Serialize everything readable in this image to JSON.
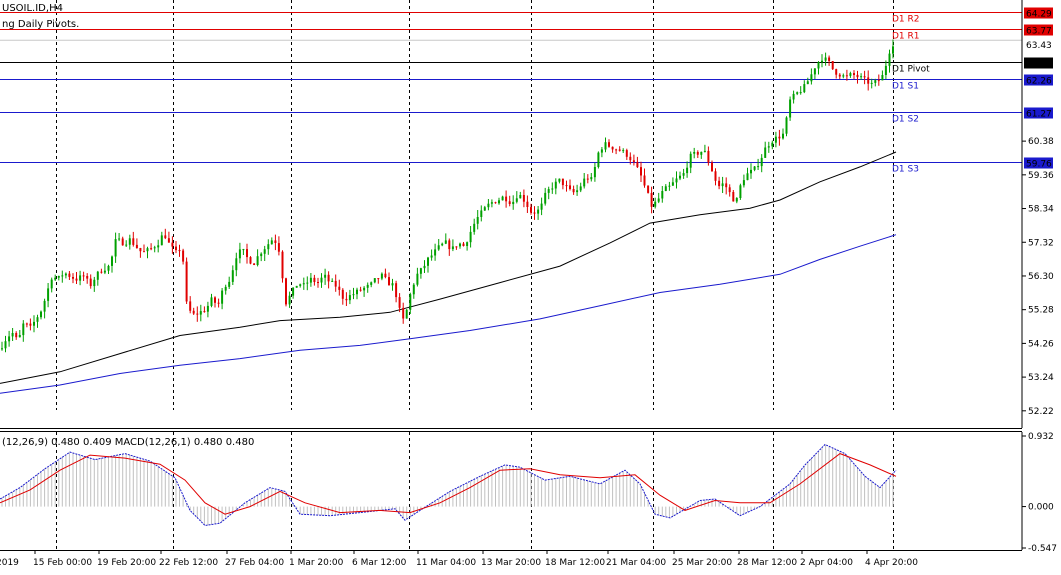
{
  "window": {
    "title": "USOIL.ID,H4",
    "indicator_name": "ng Daily Pivots."
  },
  "colors": {
    "up": "#00a000",
    "down": "#e00000",
    "ma_fast": "#000000",
    "ma_slow": "#1a1acd",
    "resistance": "#e00000",
    "support": "#1a1acd",
    "pivot": "#000000",
    "macd_hist": "#c0c0c0",
    "macd_main": "#1a1acd",
    "macd_signal": "#e00000",
    "grid": "#000000"
  },
  "chart_data": [
    {
      "type": "candlestick",
      "title": "USOIL.ID,H4",
      "ylim": [
        51.7,
        64.65
      ],
      "y_ticks": [
        "64.29",
        "63.77",
        "62.78",
        "62.26",
        "61.27",
        "60.38",
        "59.76",
        "59.36",
        "58.34",
        "57.32",
        "56.30",
        "55.28",
        "54.26",
        "53.24",
        "52.22"
      ],
      "x_ticks": [
        "2019",
        "15 Feb 00:00",
        "19 Feb 20:00",
        "22 Feb 12:00",
        "27 Feb 04:00",
        "1 Mar 20:00",
        "6 Mar 12:00",
        "11 Mar 04:00",
        "13 Mar 20:00",
        "18 Mar 12:00",
        "21 Mar 04:00",
        "25 Mar 20:00",
        "28 Mar 12:00",
        "2 Apr 04:00",
        "4 Apr 20:00"
      ],
      "levels": [
        {
          "name": "D1 R2",
          "value": 64.29,
          "label": "64.29",
          "kind": "resistance"
        },
        {
          "name": "D1 R1",
          "value": 63.77,
          "label": "63.77",
          "kind": "resistance"
        },
        {
          "name": "D1 Pivot",
          "value": 62.78,
          "label": "62.78",
          "kind": "pivot"
        },
        {
          "name": "D1 S1",
          "value": 62.26,
          "label": "62.26",
          "kind": "support"
        },
        {
          "name": "D1 S2",
          "value": 61.27,
          "label": "61.27",
          "kind": "support"
        },
        {
          "name": "D1 S3",
          "value": 59.76,
          "label": "59.76",
          "kind": "support"
        }
      ],
      "current_price": "63.43",
      "price_path": [
        [
          0,
          54.1
        ],
        [
          6,
          54.4
        ],
        [
          12,
          54.6
        ],
        [
          18,
          54.3
        ],
        [
          24,
          54.9
        ],
        [
          30,
          54.7
        ],
        [
          36,
          55.0
        ],
        [
          42,
          55.3
        ],
        [
          48,
          55.9
        ],
        [
          52,
          56.3
        ],
        [
          58,
          56.2
        ],
        [
          64,
          56.4
        ],
        [
          70,
          56.3
        ],
        [
          76,
          56.2
        ],
        [
          84,
          56.3
        ],
        [
          90,
          56.0
        ],
        [
          96,
          56.3
        ],
        [
          102,
          56.5
        ],
        [
          110,
          56.6
        ],
        [
          116,
          57.4
        ],
        [
          124,
          57.3
        ],
        [
          130,
          57.4
        ],
        [
          136,
          57.2
        ],
        [
          142,
          57.0
        ],
        [
          150,
          57.1
        ],
        [
          158,
          57.3
        ],
        [
          164,
          57.6
        ],
        [
          170,
          57.2
        ],
        [
          176,
          57.0
        ],
        [
          182,
          57.2
        ],
        [
          186,
          55.5
        ],
        [
          192,
          55.1
        ],
        [
          200,
          55.2
        ],
        [
          206,
          55.3
        ],
        [
          212,
          55.6
        ],
        [
          218,
          55.4
        ],
        [
          224,
          56.0
        ],
        [
          230,
          56.2
        ],
        [
          236,
          56.9
        ],
        [
          242,
          57.1
        ],
        [
          248,
          56.8
        ],
        [
          254,
          56.7
        ],
        [
          260,
          57.0
        ],
        [
          266,
          57.2
        ],
        [
          272,
          57.4
        ],
        [
          278,
          57.3
        ],
        [
          286,
          55.5
        ],
        [
          292,
          55.8
        ],
        [
          298,
          56.1
        ],
        [
          304,
          56.0
        ],
        [
          310,
          56.2
        ],
        [
          318,
          56.1
        ],
        [
          324,
          56.3
        ],
        [
          330,
          56.1
        ],
        [
          336,
          56.0
        ],
        [
          344,
          55.6
        ],
        [
          350,
          55.7
        ],
        [
          356,
          55.8
        ],
        [
          362,
          55.9
        ],
        [
          370,
          56.0
        ],
        [
          376,
          56.2
        ],
        [
          382,
          56.3
        ],
        [
          388,
          56.1
        ],
        [
          394,
          56.0
        ],
        [
          400,
          55.2
        ],
        [
          404,
          54.9
        ],
        [
          410,
          55.7
        ],
        [
          416,
          56.3
        ],
        [
          422,
          56.5
        ],
        [
          428,
          56.8
        ],
        [
          434,
          57.0
        ],
        [
          440,
          57.2
        ],
        [
          446,
          57.3
        ],
        [
          452,
          57.1
        ],
        [
          458,
          57.3
        ],
        [
          464,
          57.2
        ],
        [
          470,
          57.6
        ],
        [
          476,
          58.0
        ],
        [
          484,
          58.3
        ],
        [
          490,
          58.5
        ],
        [
          498,
          58.6
        ],
        [
          504,
          58.7
        ],
        [
          512,
          58.5
        ],
        [
          518,
          58.8
        ],
        [
          524,
          58.6
        ],
        [
          532,
          58.2
        ],
        [
          540,
          58.3
        ],
        [
          546,
          58.8
        ],
        [
          552,
          59.0
        ],
        [
          560,
          59.2
        ],
        [
          566,
          59.0
        ],
        [
          572,
          58.8
        ],
        [
          578,
          58.9
        ],
        [
          586,
          59.3
        ],
        [
          592,
          59.2
        ],
        [
          598,
          60.0
        ],
        [
          604,
          60.3
        ],
        [
          612,
          60.2
        ],
        [
          620,
          60.1
        ],
        [
          626,
          60.0
        ],
        [
          632,
          59.8
        ],
        [
          640,
          59.4
        ],
        [
          646,
          58.9
        ],
        [
          652,
          58.4
        ],
        [
          658,
          58.6
        ],
        [
          664,
          58.9
        ],
        [
          670,
          59.0
        ],
        [
          676,
          59.2
        ],
        [
          684,
          59.4
        ],
        [
          690,
          59.9
        ],
        [
          696,
          60.0
        ],
        [
          704,
          60.1
        ],
        [
          712,
          59.5
        ],
        [
          718,
          59.0
        ],
        [
          724,
          59.1
        ],
        [
          730,
          58.8
        ],
        [
          736,
          58.5
        ],
        [
          742,
          59.2
        ],
        [
          748,
          59.4
        ],
        [
          754,
          59.5
        ],
        [
          760,
          59.8
        ],
        [
          766,
          60.2
        ],
        [
          772,
          60.4
        ],
        [
          778,
          60.5
        ],
        [
          784,
          60.6
        ],
        [
          790,
          61.6
        ],
        [
          796,
          61.8
        ],
        [
          804,
          62.0
        ],
        [
          810,
          62.3
        ],
        [
          816,
          62.7
        ],
        [
          822,
          62.9
        ],
        [
          828,
          62.8
        ],
        [
          834,
          62.5
        ],
        [
          840,
          62.4
        ],
        [
          846,
          62.3
        ],
        [
          852,
          62.4
        ],
        [
          860,
          62.3
        ],
        [
          866,
          62.2
        ],
        [
          872,
          62.1
        ],
        [
          878,
          62.2
        ],
        [
          884,
          62.4
        ],
        [
          888,
          63.0
        ],
        [
          892,
          63.3
        ],
        [
          896,
          63.43
        ]
      ],
      "ma_fast_path": [
        [
          0,
          53.05
        ],
        [
          60,
          53.4
        ],
        [
          120,
          53.95
        ],
        [
          180,
          54.5
        ],
        [
          240,
          54.75
        ],
        [
          280,
          54.95
        ],
        [
          340,
          55.05
        ],
        [
          390,
          55.2
        ],
        [
          440,
          55.6
        ],
        [
          500,
          56.1
        ],
        [
          560,
          56.6
        ],
        [
          610,
          57.3
        ],
        [
          650,
          57.9
        ],
        [
          700,
          58.15
        ],
        [
          750,
          58.35
        ],
        [
          780,
          58.6
        ],
        [
          820,
          59.15
        ],
        [
          860,
          59.6
        ],
        [
          896,
          60.05
        ]
      ],
      "ma_slow_path": [
        [
          0,
          52.75
        ],
        [
          60,
          53.0
        ],
        [
          120,
          53.35
        ],
        [
          180,
          53.6
        ],
        [
          240,
          53.8
        ],
        [
          300,
          54.05
        ],
        [
          360,
          54.2
        ],
        [
          410,
          54.4
        ],
        [
          470,
          54.65
        ],
        [
          540,
          55.0
        ],
        [
          600,
          55.4
        ],
        [
          660,
          55.8
        ],
        [
          720,
          56.05
        ],
        [
          780,
          56.35
        ],
        [
          820,
          56.8
        ],
        [
          860,
          57.2
        ],
        [
          896,
          57.55
        ]
      ]
    },
    {
      "type": "bar",
      "title": "(12,26,9) 0.480 0.409 MACD(12,26,1) 0.480 0.480",
      "ylim": [
        -0.547,
        0.932
      ],
      "y_ticks": [
        "0.932",
        "0.000",
        "-0.547"
      ],
      "macd_path": [
        [
          0,
          0.1
        ],
        [
          20,
          0.25
        ],
        [
          45,
          0.5
        ],
        [
          70,
          0.72
        ],
        [
          95,
          0.62
        ],
        [
          125,
          0.7
        ],
        [
          150,
          0.6
        ],
        [
          175,
          0.38
        ],
        [
          190,
          -0.05
        ],
        [
          205,
          -0.25
        ],
        [
          220,
          -0.22
        ],
        [
          245,
          0.05
        ],
        [
          270,
          0.25
        ],
        [
          285,
          0.2
        ],
        [
          300,
          -0.1
        ],
        [
          330,
          -0.12
        ],
        [
          360,
          -0.08
        ],
        [
          395,
          -0.03
        ],
        [
          405,
          -0.18
        ],
        [
          420,
          -0.05
        ],
        [
          450,
          0.2
        ],
        [
          480,
          0.4
        ],
        [
          505,
          0.55
        ],
        [
          520,
          0.52
        ],
        [
          545,
          0.35
        ],
        [
          570,
          0.4
        ],
        [
          600,
          0.3
        ],
        [
          625,
          0.48
        ],
        [
          640,
          0.3
        ],
        [
          655,
          -0.1
        ],
        [
          670,
          -0.15
        ],
        [
          700,
          0.08
        ],
        [
          715,
          0.1
        ],
        [
          740,
          -0.12
        ],
        [
          760,
          0.0
        ],
        [
          790,
          0.3
        ],
        [
          805,
          0.55
        ],
        [
          825,
          0.82
        ],
        [
          845,
          0.7
        ],
        [
          865,
          0.4
        ],
        [
          880,
          0.25
        ],
        [
          896,
          0.48
        ]
      ],
      "signal_path": [
        [
          0,
          0.05
        ],
        [
          30,
          0.22
        ],
        [
          60,
          0.48
        ],
        [
          90,
          0.68
        ],
        [
          125,
          0.64
        ],
        [
          160,
          0.56
        ],
        [
          185,
          0.35
        ],
        [
          205,
          0.05
        ],
        [
          225,
          -0.1
        ],
        [
          250,
          0.0
        ],
        [
          280,
          0.2
        ],
        [
          305,
          0.05
        ],
        [
          340,
          -0.08
        ],
        [
          380,
          -0.05
        ],
        [
          410,
          -0.08
        ],
        [
          440,
          0.05
        ],
        [
          470,
          0.25
        ],
        [
          500,
          0.48
        ],
        [
          530,
          0.5
        ],
        [
          560,
          0.42
        ],
        [
          600,
          0.38
        ],
        [
          635,
          0.42
        ],
        [
          660,
          0.15
        ],
        [
          685,
          -0.05
        ],
        [
          715,
          0.08
        ],
        [
          740,
          0.05
        ],
        [
          770,
          0.05
        ],
        [
          800,
          0.3
        ],
        [
          840,
          0.7
        ],
        [
          870,
          0.55
        ],
        [
          896,
          0.4
        ]
      ]
    }
  ]
}
